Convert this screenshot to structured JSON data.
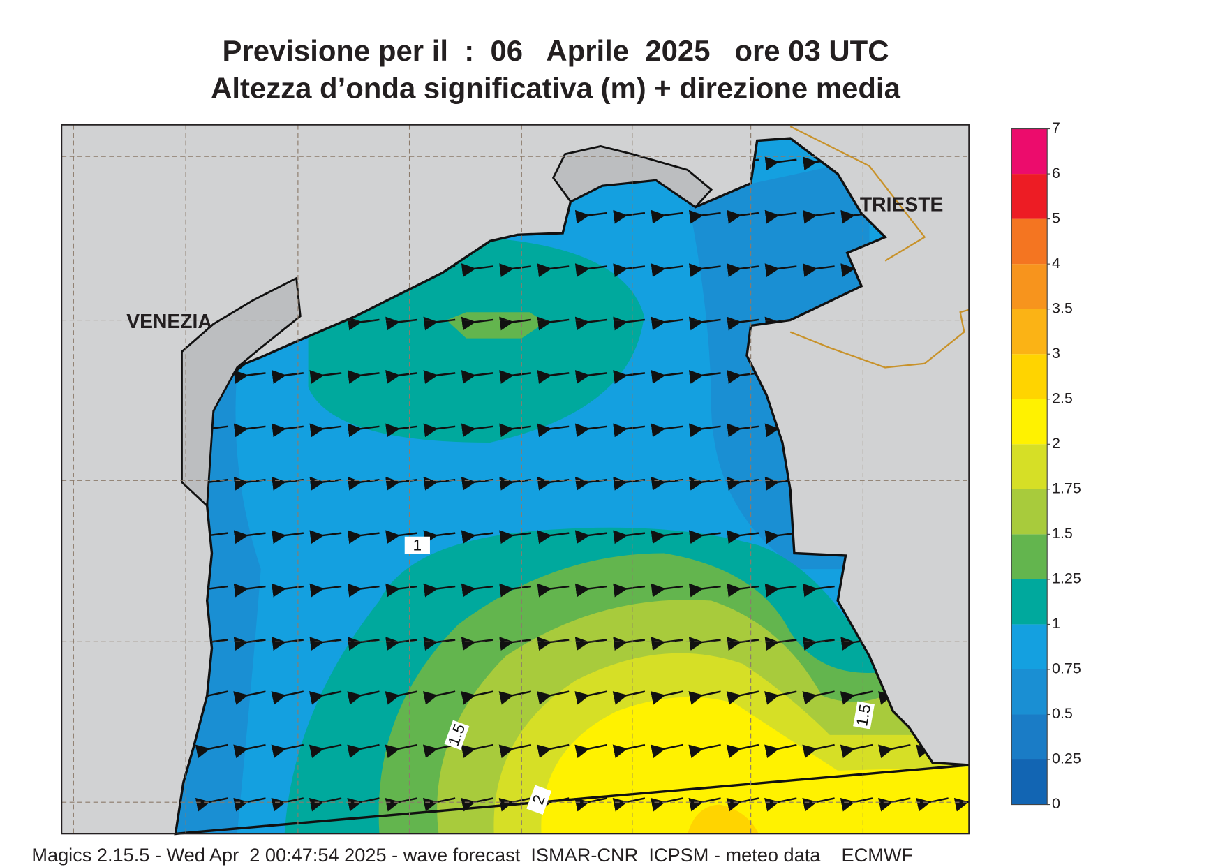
{
  "header": {
    "title": "Previsione per il  :  06   Aprile  2025   ore 03 UTC",
    "subtitle": "Altezza d’onda significativa (m) + direzione media"
  },
  "map": {
    "cities": [
      {
        "label": "VENEZIA"
      },
      {
        "label": "TRIESTE"
      }
    ],
    "contour_labels": [
      1,
      1.5,
      1.5,
      2
    ]
  },
  "colorbar": {
    "levels": [
      0,
      0.25,
      0.5,
      0.75,
      1,
      1.25,
      1.5,
      1.75,
      2,
      2.5,
      3,
      3.5,
      4,
      5,
      6,
      7
    ],
    "colors": [
      "#1265b3",
      "#1a7cc6",
      "#1a8fd3",
      "#14a0e0",
      "#00a99d",
      "#63b54e",
      "#a8cb3c",
      "#d6df26",
      "#fff200",
      "#ffd400",
      "#fbb315",
      "#f7941d",
      "#f47521",
      "#ed1c24",
      "#ec0c6c"
    ]
  },
  "footer": "Magics 2.15.5 - Wed Apr  2 00:47:54 2025 - wave forecast  ISMAR-CNR  ICPSM - meteo data    ECMWF"
}
